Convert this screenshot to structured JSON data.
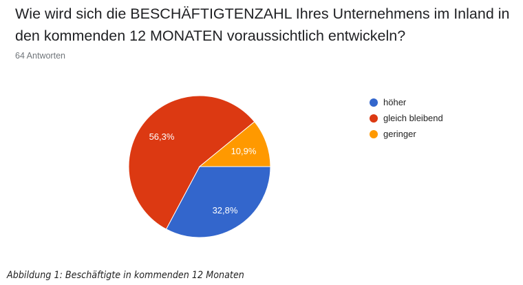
{
  "question": {
    "title": "Wie wird sich die BESCHÄFTIGTENZAHL Ihres Unternehmens im Inland in den kommenden 12 MONATEN voraussichtlich entwickeln?",
    "responses": "64 Antworten"
  },
  "chart_data": {
    "type": "pie",
    "title": "Wie wird sich die BESCHÄFTIGTENZAHL Ihres Unternehmens im Inland in den kommenden 12 MONATEN voraussichtlich entwickeln?",
    "subtitle": "64 Antworten",
    "categories": [
      "höher",
      "gleich bleibend",
      "geringer"
    ],
    "values": [
      32.8,
      56.3,
      10.9
    ],
    "labels": [
      "32,8%",
      "56,3%",
      "10,9%"
    ],
    "colors": [
      "#3366cc",
      "#dc3912",
      "#ff9900"
    ],
    "legend_position": "right",
    "caption": "Abbildung 1: Beschäftigte in kommenden 12 Monaten"
  },
  "legend": [
    {
      "label": "höher",
      "color": "#3366cc"
    },
    {
      "label": "gleich bleibend",
      "color": "#dc3912"
    },
    {
      "label": "geringer",
      "color": "#ff9900"
    }
  ],
  "slice_labels": {
    "hoeher": "32,8%",
    "gleich": "56,3%",
    "geringer": "10,9%"
  },
  "caption": "Abbildung 1: Beschäftigte in kommenden 12 Monaten"
}
